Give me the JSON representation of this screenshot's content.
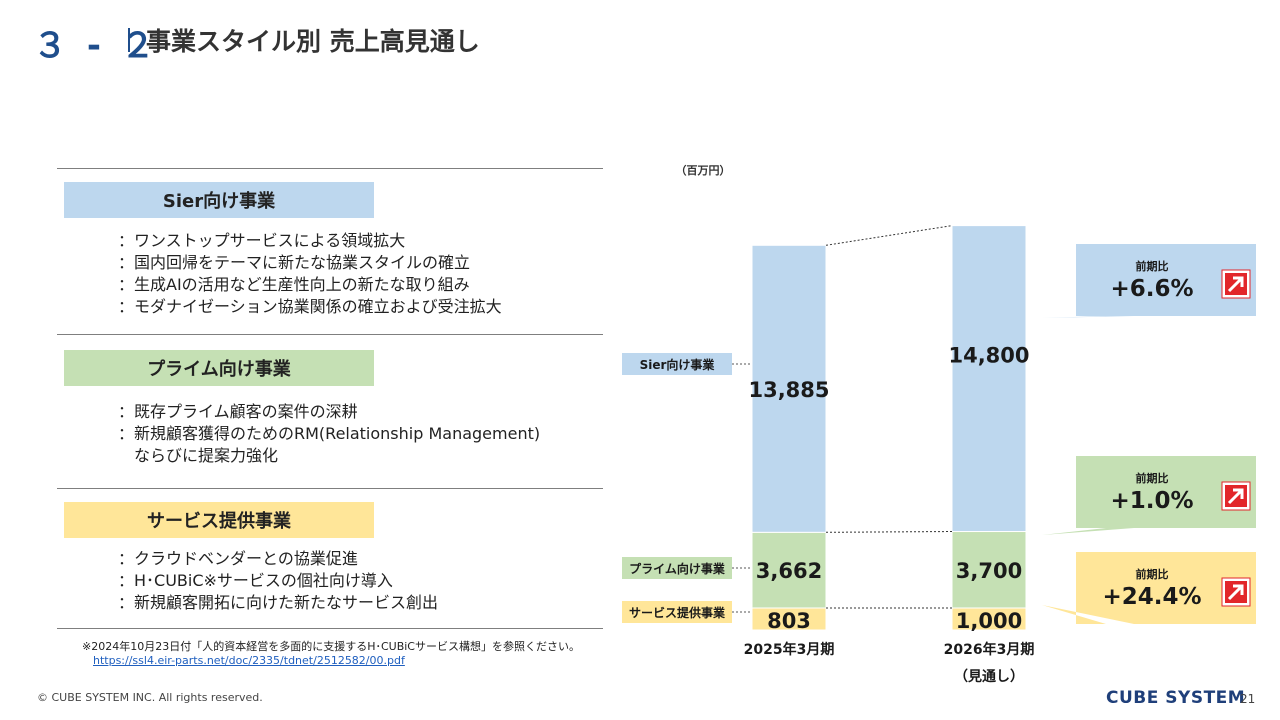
{
  "header": {
    "number": "３ - ２",
    "title": "事業スタイル別 売上高見通し"
  },
  "sections": [
    {
      "heading": "Sier向け事業",
      "color": "#bdd7ee",
      "bullets": [
        "：ワンストップサービスによる領域拡大",
        "：国内回帰をテーマに新たな協業スタイルの確立",
        "：生成AIの活用など生産性向上の新たな取り組み",
        "：モダナイゼーション協業関係の確立および受注拡大"
      ]
    },
    {
      "heading": "プライム向け事業",
      "color": "#c5e0b4",
      "bullets": [
        "：既存プライム顧客の案件の深耕",
        "：新規顧客獲得のためのRM(Relationship Management)",
        "　ならびに提案力強化"
      ]
    },
    {
      "heading": "サービス提供事業",
      "color": "#ffe699",
      "bullets": [
        "：クラウドベンダーとの協業促進",
        "：H･CUBiC※サービスの個社向け導入",
        "：新規顧客開拓に向けた新たなサービス創出"
      ]
    }
  ],
  "footnote": {
    "text": "※2024年10月23日付「人的資本経営を多面的に支援するH･CUBiCサービス構想」を参照ください。",
    "link": "https://ssl4.eir-parts.net/doc/2335/tdnet/2512582/00.pdf"
  },
  "footer": {
    "copyright": "© CUBE SYSTEM INC. All rights reserved.",
    "brand": "CUBE SYSTEM",
    "page": "21"
  },
  "chart_data": {
    "type": "bar",
    "stacked": true,
    "unit": "（百万円）",
    "categories": [
      "2025年3月期",
      "2026年3月期"
    ],
    "category_sub": [
      "",
      "（見通し）"
    ],
    "series": [
      {
        "name": "サービス提供事業",
        "values": [
          803,
          1000
        ],
        "labels": [
          "803",
          "1,000"
        ],
        "color": "#ffe699"
      },
      {
        "name": "プライム向け事業",
        "values": [
          3662,
          3700
        ],
        "labels": [
          "3,662",
          "3,700"
        ],
        "color": "#c5e0b4"
      },
      {
        "name": "Sier向け事業",
        "values": [
          13885,
          14800
        ],
        "labels": [
          "13,885",
          "14,800"
        ],
        "color": "#bdd7ee"
      }
    ],
    "callouts": [
      {
        "series": "Sier向け事業",
        "label": "前期比",
        "value": "+6.6%",
        "color": "#bdd7ee"
      },
      {
        "series": "プライム向け事業",
        "label": "前期比",
        "value": "+1.0%",
        "color": "#c5e0b4"
      },
      {
        "series": "サービス提供事業",
        "label": "前期比",
        "value": "+24.4%",
        "color": "#ffe699"
      }
    ],
    "arrow_icon": "up-right-arrow-icon",
    "arrow_color": "#e2262a"
  }
}
